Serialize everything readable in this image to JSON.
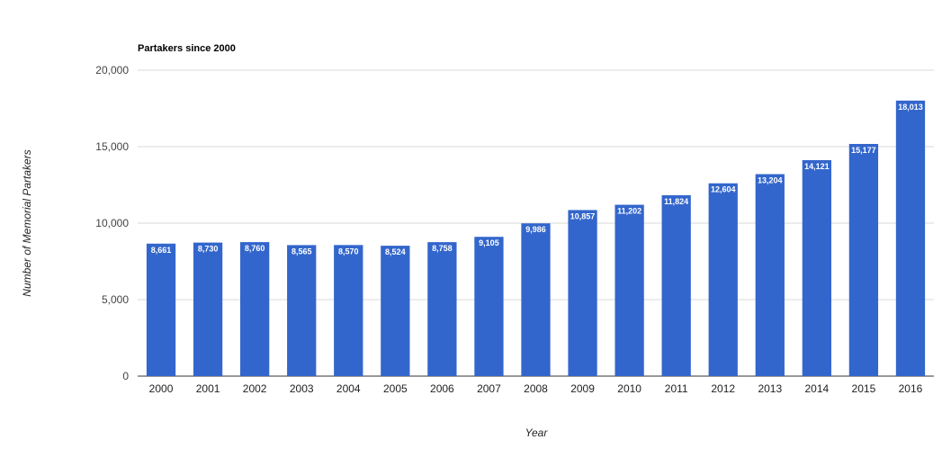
{
  "chart_data": {
    "type": "bar",
    "title": "Partakers since 2000",
    "xlabel": "Year",
    "ylabel": "Number of Memorial Partakers",
    "categories": [
      "2000",
      "2001",
      "2002",
      "2003",
      "2004",
      "2005",
      "2006",
      "2007",
      "2008",
      "2009",
      "2010",
      "2011",
      "2012",
      "2013",
      "2014",
      "2015",
      "2016"
    ],
    "values": [
      8661,
      8730,
      8760,
      8565,
      8570,
      8524,
      8758,
      9105,
      9986,
      10857,
      11202,
      11824,
      12604,
      13204,
      14121,
      15177,
      18013
    ],
    "value_labels": [
      "8,661",
      "8,730",
      "8,760",
      "8,565",
      "8,570",
      "8,524",
      "8,758",
      "9,105",
      "9,986",
      "10,857",
      "11,202",
      "11,824",
      "12,604",
      "13,204",
      "14,121",
      "15,177",
      "18,013"
    ],
    "ylim": [
      0,
      20000
    ],
    "yticks": [
      0,
      5000,
      10000,
      15000,
      20000
    ],
    "ytick_labels": [
      "0",
      "5,000",
      "10,000",
      "15,000",
      "20,000"
    ],
    "grid": true,
    "bar_color": "#3366cc"
  }
}
